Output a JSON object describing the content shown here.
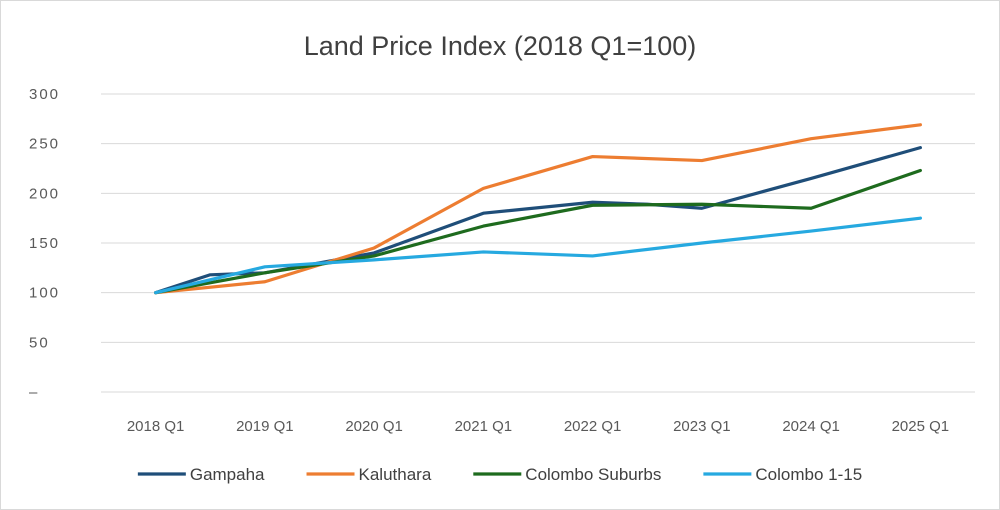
{
  "chart_data": {
    "type": "line",
    "title": "Land Price Index (2018 Q1=100)",
    "xlabel": "",
    "ylabel": "",
    "categories": [
      "2018 Q1",
      "2019 Q1",
      "2020 Q1",
      "2021 Q1",
      "2022 Q1",
      "2023 Q1",
      "2024 Q1",
      "2025 Q1"
    ],
    "x_points": [
      0,
      1,
      2,
      3,
      4,
      5,
      6,
      7
    ],
    "y_ticks": [
      {
        "value": 0,
        "label": "–"
      },
      {
        "value": 50,
        "label": "50"
      },
      {
        "value": 100,
        "label": "100"
      },
      {
        "value": 150,
        "label": "150"
      },
      {
        "value": 200,
        "label": "200"
      },
      {
        "value": 250,
        "label": "250"
      },
      {
        "value": 300,
        "label": "300"
      }
    ],
    "ylim": [
      0,
      300
    ],
    "grid": true,
    "legend_position": "bottom",
    "series": [
      {
        "name": "Gampaha",
        "color": "#1f4e79",
        "x": [
          0,
          0.5,
          1,
          2,
          3,
          4,
          4.5,
          5,
          6,
          7
        ],
        "values": [
          100,
          118,
          120,
          140,
          180,
          191,
          189,
          185,
          215,
          246
        ]
      },
      {
        "name": "Kaluthara",
        "color": "#ed7d31",
        "x": [
          0,
          1,
          2,
          3,
          4,
          5,
          6,
          7
        ],
        "values": [
          100,
          111,
          145,
          205,
          237,
          233,
          255,
          269
        ]
      },
      {
        "name": "Colombo Suburbs",
        "color": "#1e6b1e",
        "x": [
          0,
          1,
          2,
          3,
          4,
          5,
          6,
          7
        ],
        "values": [
          100,
          120,
          137,
          167,
          188,
          189,
          185,
          223
        ]
      },
      {
        "name": "Colombo 1-15",
        "color": "#26a9e0",
        "x": [
          0,
          1,
          2,
          3,
          4,
          5,
          6,
          7
        ],
        "values": [
          100,
          126,
          133,
          141,
          137,
          150,
          162,
          175
        ]
      }
    ]
  }
}
